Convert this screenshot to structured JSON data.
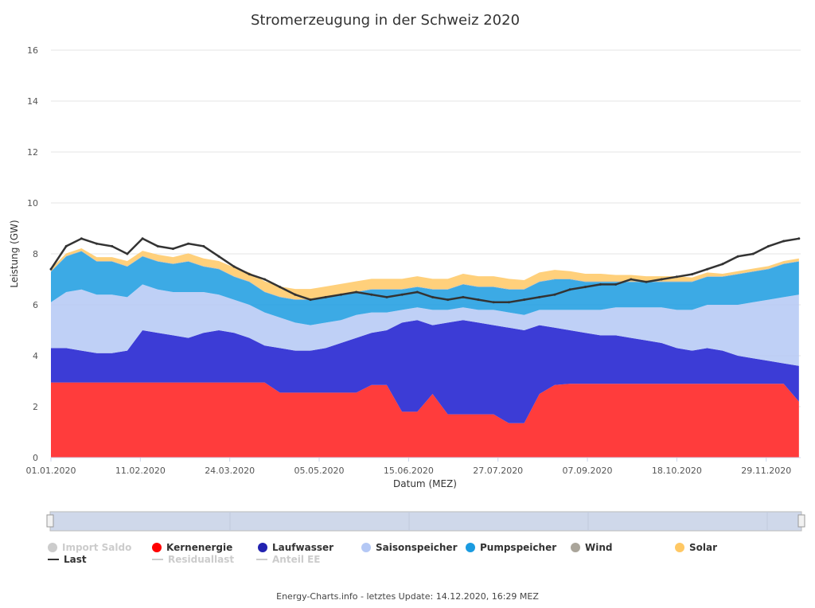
{
  "chart_data": {
    "type": "area",
    "title": "Stromerzeugung in der Schweiz 2020",
    "xlabel": "Datum (MEZ)",
    "ylabel": "Leistung (GW)",
    "ylim": [
      0,
      16
    ],
    "yticks": [
      "0",
      "2",
      "4",
      "6",
      "8",
      "10",
      "12",
      "14",
      "16"
    ],
    "xticks": [
      "01.01.2020",
      "11.02.2020",
      "24.03.2020",
      "05.05.2020",
      "15.06.2020",
      "27.07.2020",
      "07.09.2020",
      "18.10.2020",
      "29.11.2020"
    ],
    "x_start": "01.01.2020",
    "x_step_days": 7,
    "grid": true,
    "legend_position": "bottom",
    "series": [
      {
        "name": "Import Saldo",
        "color": "#cccccc",
        "visible": false,
        "values": []
      },
      {
        "name": "Kernenergie",
        "color": "#ff3c3c",
        "visible": true,
        "values": [
          2.95,
          2.95,
          2.95,
          2.95,
          2.95,
          2.95,
          2.95,
          2.95,
          2.95,
          2.95,
          2.95,
          2.95,
          2.95,
          2.95,
          2.95,
          2.55,
          2.55,
          2.55,
          2.55,
          2.55,
          2.55,
          2.85,
          2.85,
          1.8,
          1.8,
          2.5,
          1.7,
          1.7,
          1.7,
          1.7,
          1.35,
          1.35,
          2.5,
          2.85,
          2.9,
          2.9,
          2.9,
          2.9,
          2.9,
          2.9,
          2.9,
          2.9,
          2.9,
          2.9,
          2.9,
          2.9,
          2.9,
          2.9,
          2.9,
          2.2
        ]
      },
      {
        "name": "Laufwasser",
        "color": "#3c3cd6",
        "visible": true,
        "values": [
          1.35,
          1.35,
          1.25,
          1.15,
          1.15,
          1.25,
          2.05,
          1.95,
          1.85,
          1.75,
          1.95,
          2.05,
          1.95,
          1.75,
          1.45,
          1.75,
          1.65,
          1.65,
          1.75,
          1.95,
          2.15,
          2.05,
          2.15,
          3.5,
          3.6,
          2.7,
          3.6,
          3.7,
          3.6,
          3.5,
          3.75,
          3.65,
          2.7,
          2.25,
          2.1,
          2.0,
          1.9,
          1.9,
          1.8,
          1.7,
          1.6,
          1.4,
          1.3,
          1.4,
          1.3,
          1.1,
          1.0,
          0.9,
          0.8,
          1.4
        ]
      },
      {
        "name": "Saisonspeicher",
        "color": "#b4c8f5",
        "visible": true,
        "values": [
          1.8,
          2.2,
          2.4,
          2.3,
          2.3,
          2.1,
          1.8,
          1.7,
          1.7,
          1.8,
          1.6,
          1.4,
          1.3,
          1.3,
          1.3,
          1.2,
          1.1,
          1.0,
          1.0,
          0.9,
          0.9,
          0.8,
          0.7,
          0.5,
          0.5,
          0.6,
          0.5,
          0.5,
          0.5,
          0.6,
          0.6,
          0.6,
          0.6,
          0.7,
          0.8,
          0.9,
          1.0,
          1.1,
          1.2,
          1.3,
          1.4,
          1.5,
          1.6,
          1.7,
          1.8,
          2.0,
          2.2,
          2.4,
          2.6,
          2.8
        ]
      },
      {
        "name": "Pumpspeicher",
        "color": "#1a9be0",
        "visible": true,
        "values": [
          1.2,
          1.4,
          1.5,
          1.3,
          1.3,
          1.2,
          1.1,
          1.1,
          1.1,
          1.2,
          1.0,
          1.0,
          0.9,
          0.9,
          0.8,
          0.8,
          0.9,
          1.0,
          1.0,
          1.0,
          0.9,
          0.9,
          0.9,
          0.8,
          0.8,
          0.8,
          0.8,
          0.9,
          0.9,
          0.9,
          0.9,
          1.0,
          1.1,
          1.2,
          1.2,
          1.1,
          1.1,
          1.0,
          1.0,
          1.0,
          1.0,
          1.1,
          1.1,
          1.1,
          1.1,
          1.2,
          1.2,
          1.2,
          1.3,
          1.3
        ]
      },
      {
        "name": "Wind",
        "color": "#b0aca2",
        "visible": true,
        "values": [
          0.02,
          0.02,
          0.02,
          0.02,
          0.02,
          0.02,
          0.02,
          0.02,
          0.02,
          0.02,
          0.02,
          0.02,
          0.02,
          0.02,
          0.02,
          0.02,
          0.02,
          0.02,
          0.02,
          0.02,
          0.02,
          0.02,
          0.02,
          0.02,
          0.02,
          0.02,
          0.02,
          0.02,
          0.02,
          0.02,
          0.02,
          0.02,
          0.02,
          0.02,
          0.02,
          0.02,
          0.02,
          0.02,
          0.02,
          0.02,
          0.02,
          0.02,
          0.02,
          0.02,
          0.02,
          0.02,
          0.02,
          0.02,
          0.02,
          0.02
        ]
      },
      {
        "name": "Solar",
        "color": "#ffc864",
        "visible": true,
        "values": [
          0.1,
          0.1,
          0.1,
          0.15,
          0.15,
          0.2,
          0.2,
          0.25,
          0.25,
          0.3,
          0.3,
          0.3,
          0.35,
          0.35,
          0.4,
          0.4,
          0.4,
          0.4,
          0.4,
          0.4,
          0.4,
          0.4,
          0.4,
          0.4,
          0.4,
          0.4,
          0.4,
          0.4,
          0.4,
          0.4,
          0.4,
          0.35,
          0.35,
          0.35,
          0.3,
          0.3,
          0.3,
          0.25,
          0.25,
          0.2,
          0.2,
          0.2,
          0.15,
          0.15,
          0.1,
          0.1,
          0.1,
          0.1,
          0.1,
          0.1
        ]
      },
      {
        "name": "Last",
        "color": "#333333",
        "visible": true,
        "type": "line",
        "values": [
          7.4,
          8.3,
          8.6,
          8.4,
          8.3,
          8.0,
          8.6,
          8.3,
          8.2,
          8.4,
          8.3,
          7.9,
          7.5,
          7.2,
          7.0,
          6.7,
          6.4,
          6.2,
          6.3,
          6.4,
          6.5,
          6.4,
          6.3,
          6.4,
          6.5,
          6.3,
          6.2,
          6.3,
          6.2,
          6.1,
          6.1,
          6.2,
          6.3,
          6.4,
          6.6,
          6.7,
          6.8,
          6.8,
          7.0,
          6.9,
          7.0,
          7.1,
          7.2,
          7.4,
          7.6,
          7.9,
          8.0,
          8.3,
          8.5,
          8.6
        ]
      },
      {
        "name": "Residuallast",
        "color": "#cccccc",
        "visible": false,
        "type": "line",
        "values": []
      },
      {
        "name": "Anteil EE",
        "color": "#cccccc",
        "visible": false,
        "type": "line",
        "values": []
      }
    ]
  },
  "footer": "Energy-Charts.info - letztes Update: 14.12.2020, 16:29 MEZ"
}
